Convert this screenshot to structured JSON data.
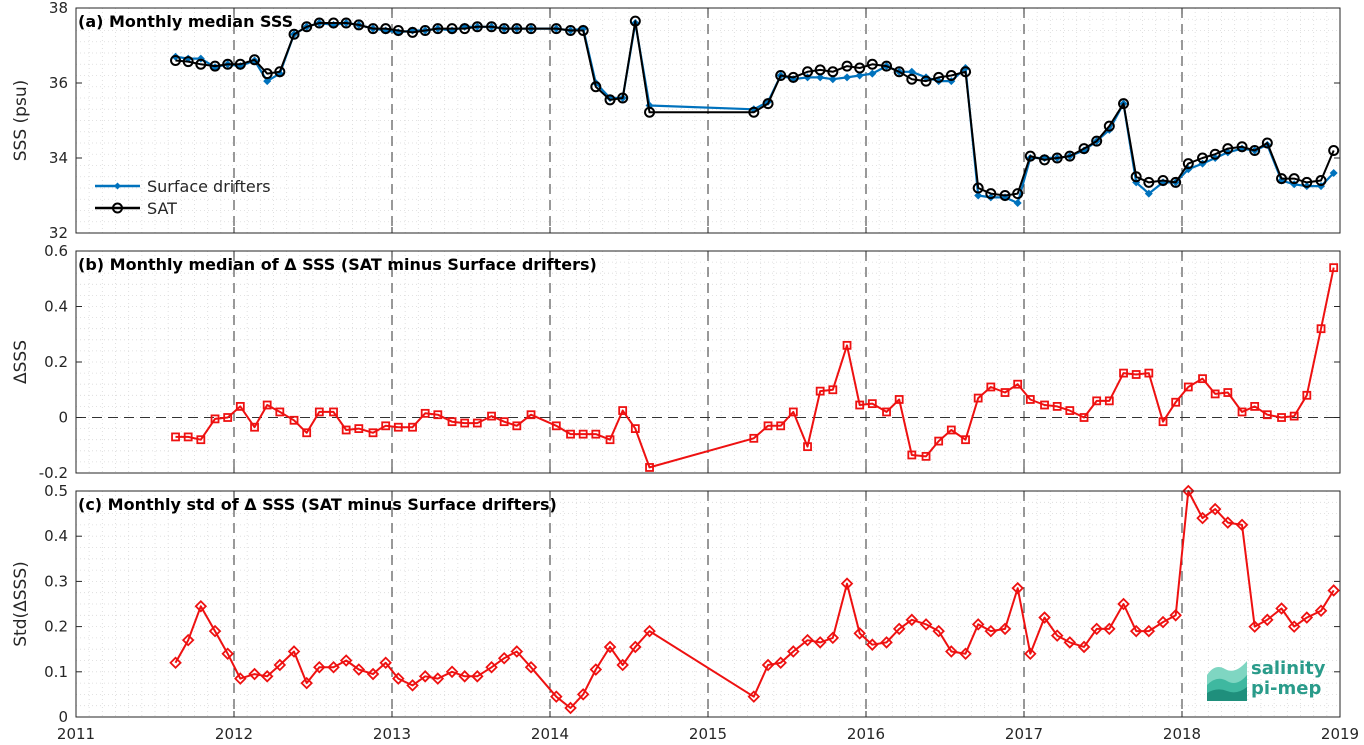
{
  "logo": {
    "line1": "salinity",
    "line2": "pi-mep"
  },
  "colors": {
    "drifters": "#0072BD",
    "sat": "#000000",
    "delta": "#EE1111"
  },
  "chart_data": [
    {
      "type": "line",
      "title": "(a) Monthly median SSS",
      "ylabel": "SSS (psu)",
      "xlim": [
        2011,
        2019
      ],
      "ylim": [
        32,
        38
      ],
      "yticks": [
        "32",
        "34",
        "36",
        "38"
      ],
      "xticks": [
        "2011",
        "2012",
        "2013",
        "2014",
        "2015",
        "2016",
        "2017",
        "2018",
        "2019"
      ],
      "grid": true,
      "legend": "middle-left",
      "series": [
        {
          "name": "Surface drifters",
          "x": [
            2011.63,
            2011.71,
            2011.79,
            2011.88,
            2011.96,
            2012.04,
            2012.13,
            2012.21,
            2012.29,
            2012.38,
            2012.46,
            2012.54,
            2012.63,
            2012.71,
            2012.79,
            2012.88,
            2012.96,
            2013.04,
            2013.13,
            2013.21,
            2013.29,
            2013.38,
            2013.46,
            2013.54,
            2013.63,
            2013.71,
            2013.79,
            2013.88,
            2014.04,
            2014.13,
            2014.21,
            2014.29,
            2014.38,
            2014.46,
            2014.54,
            2014.63,
            2015.29,
            2015.38,
            2015.46,
            2015.54,
            2015.63,
            2015.71,
            2015.79,
            2015.88,
            2015.96,
            2016.04,
            2016.13,
            2016.21,
            2016.29,
            2016.38,
            2016.46,
            2016.54,
            2016.63,
            2016.71,
            2016.79,
            2016.88,
            2016.96,
            2017.04,
            2017.13,
            2017.21,
            2017.29,
            2017.38,
            2017.46,
            2017.54,
            2017.63,
            2017.71,
            2017.79,
            2017.88,
            2017.96,
            2018.04,
            2018.13,
            2018.21,
            2018.29,
            2018.38,
            2018.46,
            2018.54,
            2018.63,
            2018.71,
            2018.79,
            2018.88,
            2018.96
          ],
          "values": [
            36.7,
            36.65,
            36.65,
            36.42,
            36.5,
            36.45,
            36.6,
            36.05,
            36.25,
            37.3,
            37.5,
            37.6,
            37.55,
            37.6,
            37.55,
            37.45,
            37.4,
            37.35,
            37.4,
            37.4,
            37.45,
            37.4,
            37.5,
            37.5,
            37.5,
            37.45,
            37.45,
            37.45,
            37.45,
            37.4,
            37.45,
            36.0,
            35.6,
            35.6,
            37.6,
            35.4,
            35.3,
            35.5,
            36.2,
            36.1,
            36.15,
            36.15,
            36.1,
            36.15,
            36.2,
            36.25,
            36.45,
            36.3,
            36.3,
            36.15,
            36.05,
            36.05,
            36.4,
            33.0,
            32.95,
            32.95,
            32.8,
            34.0,
            34.0,
            34.0,
            34.05,
            34.2,
            34.45,
            34.75,
            35.45,
            33.35,
            33.05,
            33.35,
            33.35,
            33.7,
            33.85,
            34.0,
            34.15,
            34.25,
            34.2,
            34.35,
            33.4,
            33.3,
            33.25,
            33.25,
            33.6
          ]
        },
        {
          "name": "SAT",
          "x": [
            2011.63,
            2011.71,
            2011.79,
            2011.88,
            2011.96,
            2012.04,
            2012.13,
            2012.21,
            2012.29,
            2012.38,
            2012.46,
            2012.54,
            2012.63,
            2012.71,
            2012.79,
            2012.88,
            2012.96,
            2013.04,
            2013.13,
            2013.21,
            2013.29,
            2013.38,
            2013.46,
            2013.54,
            2013.63,
            2013.71,
            2013.79,
            2013.88,
            2014.04,
            2014.13,
            2014.21,
            2014.29,
            2014.38,
            2014.46,
            2014.54,
            2014.63,
            2015.29,
            2015.38,
            2015.46,
            2015.54,
            2015.63,
            2015.71,
            2015.79,
            2015.88,
            2015.96,
            2016.04,
            2016.13,
            2016.21,
            2016.29,
            2016.38,
            2016.46,
            2016.54,
            2016.63,
            2016.71,
            2016.79,
            2016.88,
            2016.96,
            2017.04,
            2017.13,
            2017.21,
            2017.29,
            2017.38,
            2017.46,
            2017.54,
            2017.63,
            2017.71,
            2017.79,
            2017.88,
            2017.96,
            2018.04,
            2018.13,
            2018.21,
            2018.29,
            2018.38,
            2018.46,
            2018.54,
            2018.63,
            2018.71,
            2018.79,
            2018.88,
            2018.96
          ],
          "values": [
            36.6,
            36.57,
            36.5,
            36.45,
            36.5,
            36.5,
            36.62,
            36.25,
            36.3,
            37.3,
            37.5,
            37.6,
            37.6,
            37.6,
            37.55,
            37.45,
            37.45,
            37.4,
            37.35,
            37.4,
            37.45,
            37.45,
            37.45,
            37.5,
            37.5,
            37.45,
            37.45,
            37.45,
            37.45,
            37.4,
            37.4,
            35.9,
            35.55,
            35.6,
            37.65,
            35.22,
            35.22,
            35.45,
            36.2,
            36.15,
            36.3,
            36.35,
            36.3,
            36.45,
            36.4,
            36.5,
            36.45,
            36.3,
            36.1,
            36.05,
            36.15,
            36.2,
            36.3,
            33.2,
            33.05,
            33.0,
            33.05,
            34.05,
            33.95,
            34.0,
            34.05,
            34.25,
            34.45,
            34.85,
            35.45,
            33.5,
            33.35,
            33.4,
            33.35,
            33.85,
            34.0,
            34.1,
            34.25,
            34.3,
            34.2,
            34.4,
            33.45,
            33.45,
            33.35,
            33.4,
            34.2
          ]
        }
      ]
    },
    {
      "type": "line",
      "title": "(b) Monthly median of Δ SSS (SAT minus Surface drifters)",
      "ylabel": "ΔSSS",
      "xlim": [
        2011,
        2019
      ],
      "ylim": [
        -0.2,
        0.6
      ],
      "yticks": [
        "-0.2",
        "0",
        "0.2",
        "0.4",
        "0.6"
      ],
      "grid": true,
      "series": [
        {
          "name": "",
          "x": [
            2011.63,
            2011.71,
            2011.79,
            2011.88,
            2011.96,
            2012.04,
            2012.13,
            2012.21,
            2012.29,
            2012.38,
            2012.46,
            2012.54,
            2012.63,
            2012.71,
            2012.79,
            2012.88,
            2012.96,
            2013.04,
            2013.13,
            2013.21,
            2013.29,
            2013.38,
            2013.46,
            2013.54,
            2013.63,
            2013.71,
            2013.79,
            2013.88,
            2014.04,
            2014.13,
            2014.21,
            2014.29,
            2014.38,
            2014.46,
            2014.54,
            2014.63,
            2015.29,
            2015.38,
            2015.46,
            2015.54,
            2015.63,
            2015.71,
            2015.79,
            2015.88,
            2015.96,
            2016.04,
            2016.13,
            2016.21,
            2016.29,
            2016.38,
            2016.46,
            2016.54,
            2016.63,
            2016.71,
            2016.79,
            2016.88,
            2016.96,
            2017.04,
            2017.13,
            2017.21,
            2017.29,
            2017.38,
            2017.46,
            2017.54,
            2017.63,
            2017.71,
            2017.79,
            2017.88,
            2017.96,
            2018.04,
            2018.13,
            2018.21,
            2018.29,
            2018.38,
            2018.46,
            2018.54,
            2018.63,
            2018.71,
            2018.79,
            2018.88,
            2018.96
          ],
          "values": [
            -0.07,
            -0.07,
            -0.08,
            -0.005,
            0.0,
            0.04,
            -0.035,
            0.045,
            0.02,
            -0.01,
            -0.055,
            0.02,
            0.02,
            -0.045,
            -0.04,
            -0.055,
            -0.03,
            -0.035,
            -0.035,
            0.015,
            0.01,
            -0.015,
            -0.02,
            -0.02,
            0.005,
            -0.015,
            -0.03,
            0.01,
            -0.03,
            -0.06,
            -0.06,
            -0.06,
            -0.08,
            0.025,
            -0.04,
            -0.18,
            -0.075,
            -0.03,
            -0.03,
            0.02,
            -0.105,
            0.095,
            0.1,
            0.26,
            0.045,
            0.05,
            0.02,
            0.065,
            -0.135,
            -0.14,
            -0.085,
            -0.045,
            -0.08,
            0.07,
            0.11,
            0.09,
            0.12,
            0.065,
            0.045,
            0.04,
            0.025,
            0.0,
            0.06,
            0.06,
            0.16,
            0.155,
            0.16,
            -0.015,
            0.055,
            0.11,
            0.14,
            0.085,
            0.09,
            0.02,
            0.04,
            0.01,
            0.0,
            0.005,
            0.08,
            0.32,
            0.54
          ]
        }
      ]
    },
    {
      "type": "line",
      "title": "(c) Monthly std of Δ SSS (SAT minus Surface drifters)",
      "ylabel": "Std(ΔSSS)",
      "xlim": [
        2011,
        2019
      ],
      "ylim": [
        0,
        0.5
      ],
      "yticks": [
        "0",
        "0.1",
        "0.2",
        "0.3",
        "0.4",
        "0.5"
      ],
      "grid": true,
      "series": [
        {
          "name": "",
          "x": [
            2011.63,
            2011.71,
            2011.79,
            2011.88,
            2011.96,
            2012.04,
            2012.13,
            2012.21,
            2012.29,
            2012.38,
            2012.46,
            2012.54,
            2012.63,
            2012.71,
            2012.79,
            2012.88,
            2012.96,
            2013.04,
            2013.13,
            2013.21,
            2013.29,
            2013.38,
            2013.46,
            2013.54,
            2013.63,
            2013.71,
            2013.79,
            2013.88,
            2014.04,
            2014.13,
            2014.21,
            2014.29,
            2014.38,
            2014.46,
            2014.54,
            2014.63,
            2015.29,
            2015.38,
            2015.46,
            2015.54,
            2015.63,
            2015.71,
            2015.79,
            2015.88,
            2015.96,
            2016.04,
            2016.13,
            2016.21,
            2016.29,
            2016.38,
            2016.46,
            2016.54,
            2016.63,
            2016.71,
            2016.79,
            2016.88,
            2016.96,
            2017.04,
            2017.13,
            2017.21,
            2017.29,
            2017.38,
            2017.46,
            2017.54,
            2017.63,
            2017.71,
            2017.79,
            2017.88,
            2017.96,
            2018.04,
            2018.13,
            2018.21,
            2018.29,
            2018.38,
            2018.46,
            2018.54,
            2018.63,
            2018.71,
            2018.79,
            2018.88,
            2018.96
          ],
          "values": [
            0.12,
            0.17,
            0.245,
            0.19,
            0.14,
            0.085,
            0.095,
            0.09,
            0.115,
            0.145,
            0.075,
            0.11,
            0.11,
            0.125,
            0.105,
            0.095,
            0.12,
            0.085,
            0.07,
            0.09,
            0.085,
            0.1,
            0.09,
            0.09,
            0.11,
            0.13,
            0.145,
            0.11,
            0.045,
            0.02,
            0.05,
            0.105,
            0.155,
            0.115,
            0.155,
            0.19,
            0.045,
            0.115,
            0.12,
            0.145,
            0.17,
            0.165,
            0.175,
            0.295,
            0.185,
            0.16,
            0.165,
            0.195,
            0.215,
            0.205,
            0.19,
            0.145,
            0.14,
            0.205,
            0.19,
            0.195,
            0.285,
            0.14,
            0.22,
            0.18,
            0.165,
            0.155,
            0.195,
            0.195,
            0.25,
            0.19,
            0.19,
            0.21,
            0.225,
            0.5,
            0.44,
            0.46,
            0.43,
            0.425,
            0.2,
            0.215,
            0.24,
            0.2,
            0.22,
            0.235,
            0.28
          ]
        }
      ]
    }
  ]
}
